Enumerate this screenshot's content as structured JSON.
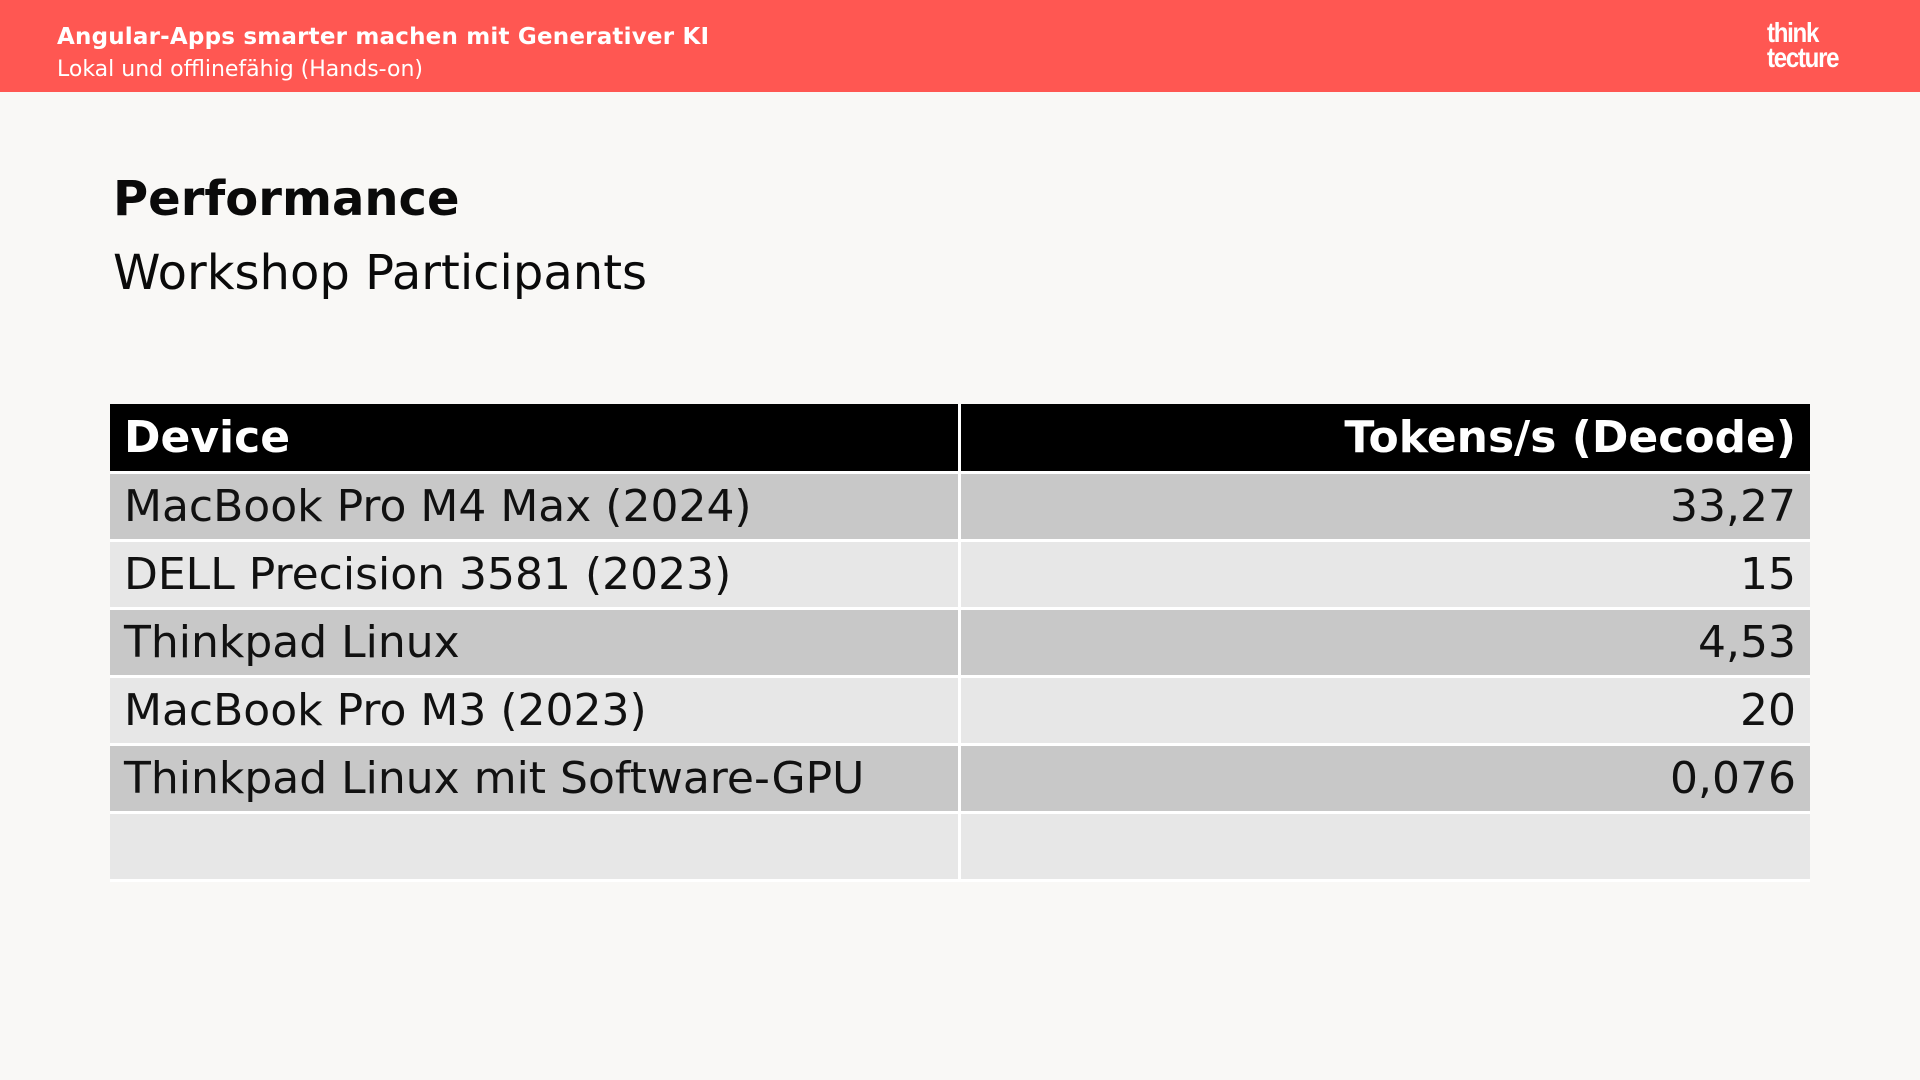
{
  "header": {
    "deck_title": "Angular-Apps smarter machen mit Generativer KI",
    "deck_subtitle": "Lokal und offlinefähig (Hands-on)",
    "logo_line1": "think",
    "logo_line2": "tecture"
  },
  "slide": {
    "title": "Performance",
    "subtitle": "Workshop Participants"
  },
  "table": {
    "headers": [
      "Device",
      "Tokens/s (Decode)"
    ],
    "rows": [
      {
        "device": "MacBook Pro M4 Max (2024)",
        "tokens": "33,27"
      },
      {
        "device": "DELL Precision 3581 (2023)",
        "tokens": "15"
      },
      {
        "device": "Thinkpad Linux",
        "tokens": "4,53"
      },
      {
        "device": "MacBook Pro M3 (2023)",
        "tokens": "20"
      },
      {
        "device": "Thinkpad Linux mit Software-GPU",
        "tokens": "0,076"
      },
      {
        "device": "",
        "tokens": ""
      }
    ]
  },
  "colors": {
    "header_bar": "#ff5752",
    "table_header": "#000000",
    "row_dark": "#c8c8c8",
    "row_light": "#e7e7e7"
  }
}
